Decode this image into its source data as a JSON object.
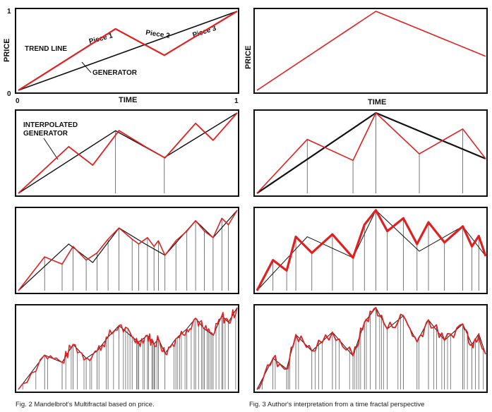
{
  "left_column": {
    "caption": "Fig. 2 Mandelbrot's Multifractal based on price.",
    "panel1": {
      "y_axis_label": "PRICE",
      "x_axis_label": "TIME",
      "y_tick_top": "1",
      "y_tick_bottom": "0",
      "x_tick_left": "0",
      "x_tick_right": "1",
      "trend_label": "TREND LINE",
      "generator_label": "GENERATOR",
      "piece_labels": [
        "Piece 1",
        "Piece 2",
        "Piece 3"
      ]
    },
    "panel2": {
      "interp_label_line1": "INTERPOLATED",
      "interp_label_line2": "GENERATOR"
    }
  },
  "right_column": {
    "caption": "Fig. 3 Author's interpretation from a time fractal perspective",
    "panel1": {
      "y_axis_label": "PRICE",
      "x_axis_label": "TIME"
    }
  },
  "colors": {
    "generator": "#e02020",
    "trend": "#111111",
    "frame": "#111111",
    "grid": "#555555"
  },
  "chart_data": [
    {
      "type": "line",
      "panel": "left-1",
      "xlim": [
        0,
        1
      ],
      "ylim": [
        0,
        1
      ],
      "series": [
        {
          "x": [
            0,
            1
          ],
          "y": [
            0,
            1
          ]
        },
        {
          "x": [
            0,
            0.444,
            0.667,
            1
          ],
          "y": [
            0,
            0.778,
            0.444,
            1
          ]
        }
      ]
    },
    {
      "type": "line",
      "panel": "left-2",
      "xlim": [
        0,
        1
      ],
      "ylim": [
        0,
        1
      ],
      "series": [
        {
          "x": [
            0,
            0.444,
            0.667,
            1
          ],
          "y": [
            0,
            0.778,
            0.444,
            1
          ]
        },
        {
          "x": [
            0,
            0.23,
            0.34,
            0.46,
            0.58,
            0.67,
            0.81,
            0.89,
            1
          ],
          "y": [
            0,
            0.58,
            0.35,
            0.78,
            0.58,
            0.44,
            0.87,
            0.66,
            1
          ]
        }
      ]
    },
    {
      "type": "line",
      "panel": "left-3",
      "xlim": [
        0,
        1
      ],
      "ylim": [
        0,
        1
      ],
      "series": [
        {
          "x": [
            0,
            0.23,
            0.34,
            0.46,
            0.58,
            0.67,
            0.81,
            0.89,
            1
          ],
          "y": [
            0,
            0.58,
            0.35,
            0.78,
            0.58,
            0.44,
            0.87,
            0.66,
            1
          ]
        },
        {
          "x": [
            0,
            0.12,
            0.2,
            0.25,
            0.31,
            0.36,
            0.41,
            0.46,
            0.52,
            0.55,
            0.59,
            0.62,
            0.64,
            0.67,
            0.72,
            0.77,
            0.81,
            0.85,
            0.89,
            0.93,
            0.96,
            1
          ],
          "y": [
            0,
            0.42,
            0.33,
            0.55,
            0.38,
            0.47,
            0.64,
            0.78,
            0.64,
            0.58,
            0.66,
            0.55,
            0.62,
            0.44,
            0.62,
            0.74,
            0.87,
            0.74,
            0.66,
            0.9,
            0.82,
            1
          ]
        }
      ]
    },
    {
      "type": "line",
      "panel": "left-4",
      "xlim": [
        0,
        1
      ],
      "ylim": [
        0,
        1
      ],
      "series": [
        {
          "x": [
            0,
            0.12,
            0.2,
            0.25,
            0.31,
            0.36,
            0.41,
            0.46,
            0.52,
            0.55,
            0.59,
            0.62,
            0.64,
            0.67,
            0.72,
            0.77,
            0.81,
            0.85,
            0.89,
            0.93,
            0.96,
            1
          ],
          "y": [
            0,
            0.42,
            0.33,
            0.55,
            0.38,
            0.47,
            0.64,
            0.78,
            0.64,
            0.58,
            0.66,
            0.55,
            0.62,
            0.44,
            0.62,
            0.74,
            0.87,
            0.74,
            0.66,
            0.9,
            0.82,
            1
          ]
        }
      ]
    },
    {
      "type": "line",
      "panel": "right-1",
      "xlim": [
        0,
        1
      ],
      "ylim": [
        0,
        1
      ],
      "series": [
        {
          "x": [
            0,
            0.52,
            1
          ],
          "y": [
            0,
            1,
            0.43
          ]
        }
      ]
    },
    {
      "type": "line",
      "panel": "right-2",
      "xlim": [
        0,
        1
      ],
      "ylim": [
        0,
        1
      ],
      "series": [
        {
          "x": [
            0,
            0.52,
            1
          ],
          "y": [
            0,
            1,
            0.43
          ]
        },
        {
          "x": [
            0,
            0.22,
            0.42,
            0.52,
            0.71,
            0.9,
            1
          ],
          "y": [
            0,
            0.67,
            0.41,
            1,
            0.49,
            0.8,
            0.43
          ]
        }
      ]
    },
    {
      "type": "line",
      "panel": "right-3",
      "xlim": [
        0,
        1
      ],
      "ylim": [
        0,
        1
      ],
      "series": [
        {
          "x": [
            0,
            0.22,
            0.42,
            0.52,
            0.71,
            0.9,
            1
          ],
          "y": [
            0,
            0.67,
            0.41,
            1,
            0.49,
            0.8,
            0.43
          ]
        },
        {
          "x": [
            0,
            0.07,
            0.13,
            0.17,
            0.24,
            0.33,
            0.42,
            0.47,
            0.52,
            0.57,
            0.64,
            0.7,
            0.75,
            0.82,
            0.9,
            0.94,
            0.97,
            1
          ],
          "y": [
            0,
            0.38,
            0.25,
            0.67,
            0.47,
            0.7,
            0.41,
            0.82,
            1,
            0.74,
            0.9,
            0.58,
            0.85,
            0.6,
            0.8,
            0.55,
            0.68,
            0.43
          ]
        }
      ]
    },
    {
      "type": "line",
      "panel": "right-4",
      "xlim": [
        0,
        1
      ],
      "ylim": [
        0,
        1
      ],
      "series": [
        {
          "x": [
            0,
            0.07,
            0.13,
            0.17,
            0.24,
            0.33,
            0.42,
            0.47,
            0.52,
            0.57,
            0.64,
            0.7,
            0.75,
            0.82,
            0.9,
            0.94,
            0.97,
            1
          ],
          "y": [
            0,
            0.38,
            0.25,
            0.67,
            0.47,
            0.7,
            0.41,
            0.82,
            1,
            0.74,
            0.9,
            0.58,
            0.85,
            0.6,
            0.8,
            0.55,
            0.68,
            0.43
          ]
        }
      ]
    }
  ]
}
